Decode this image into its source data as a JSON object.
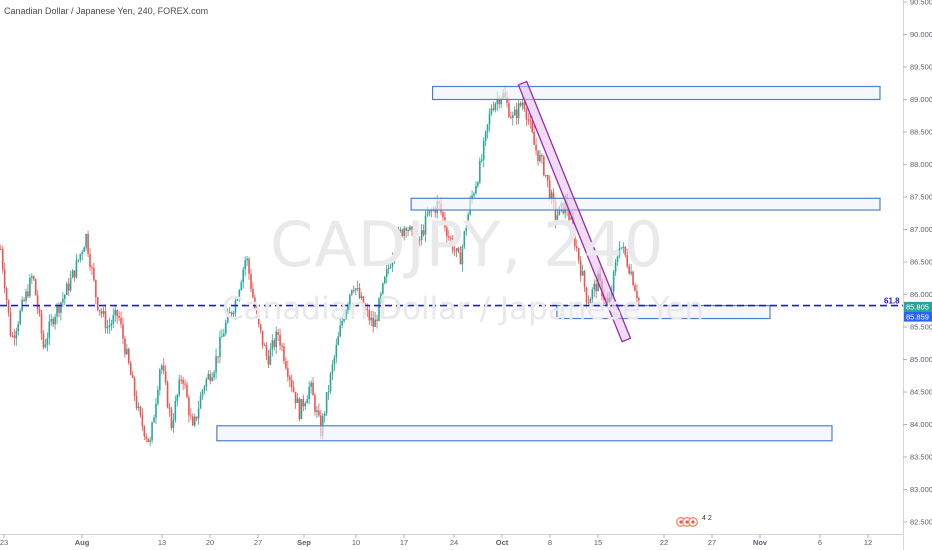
{
  "chart_data": {
    "type": "candlestick",
    "title": "Canadian Dollar / Japanese Yen, 240, FOREX.com",
    "watermark": {
      "symbol": "CADJPY, 240",
      "description": "Canadian Dollar / Japanese Yen"
    },
    "y_ticks": [
      "90.500",
      "90.000",
      "89.500",
      "89.000",
      "88.500",
      "88.000",
      "87.500",
      "87.000",
      "86.500",
      "86.000",
      "85.500",
      "85.000",
      "84.500",
      "84.000",
      "83.500",
      "83.000",
      "82.500"
    ],
    "y_range": [
      82.35,
      90.55
    ],
    "x_ticks": [
      "23",
      "Aug",
      "13",
      "20",
      "27",
      "Sep",
      "10",
      "17",
      "24",
      "Oct",
      "8",
      "15",
      "22",
      "27",
      "Nov",
      "6",
      "12"
    ],
    "last_price": "85.805",
    "reference_price": "85.859",
    "reference_label": "61.8",
    "reference_level": 85.83,
    "zones": [
      {
        "from": "Sep 21",
        "to": "Nov 13",
        "low": 89.0,
        "high": 89.2
      },
      {
        "from": "Sep 18",
        "to": "Nov 13",
        "low": 87.3,
        "high": 87.48
      },
      {
        "from": "Oct 9",
        "to": "Nov 3",
        "low": 85.63,
        "high": 85.83
      },
      {
        "from": "Jul 30",
        "to": "Nov 9",
        "low": 83.75,
        "high": 83.98
      }
    ],
    "channel": {
      "from": {
        "date": "Oct 4",
        "price": 89.25
      },
      "to": {
        "date": "Oct 18",
        "price": 85.3
      }
    },
    "overlay_badge": "4 2",
    "colors": {
      "up": "#26a69a",
      "down": "#ef5350",
      "zone_border": "#4a80d6",
      "zone_fill": "#f0f3f8",
      "channel_border": "#9c27b0",
      "channel_fill": "#e1bee7",
      "reference_line": "#1c1cc8",
      "tag_blue": "#2962ff",
      "tag_green": "#26a69a",
      "axis": "#5d606b"
    },
    "path": [
      86.7,
      85.3,
      85.8,
      86.3,
      85.2,
      85.7,
      86.0,
      86.4,
      86.9,
      85.9,
      85.5,
      85.7,
      84.9,
      84.1,
      83.7,
      85.0,
      84.0,
      84.8,
      83.9,
      84.6,
      84.9,
      85.5,
      85.9,
      86.6,
      85.6,
      85.0,
      85.4,
      84.8,
      84.2,
      84.6,
      83.9,
      84.8,
      85.6,
      86.2,
      85.8,
      85.5,
      86.2,
      86.8,
      87.1,
      86.7,
      87.2,
      87.4,
      86.9,
      86.5,
      87.4,
      88.0,
      88.9,
      89.1,
      88.7,
      89.0,
      88.3,
      87.9,
      87.2,
      87.4,
      86.7,
      85.9,
      86.2,
      85.8,
      86.8,
      86.4,
      85.8
    ]
  }
}
